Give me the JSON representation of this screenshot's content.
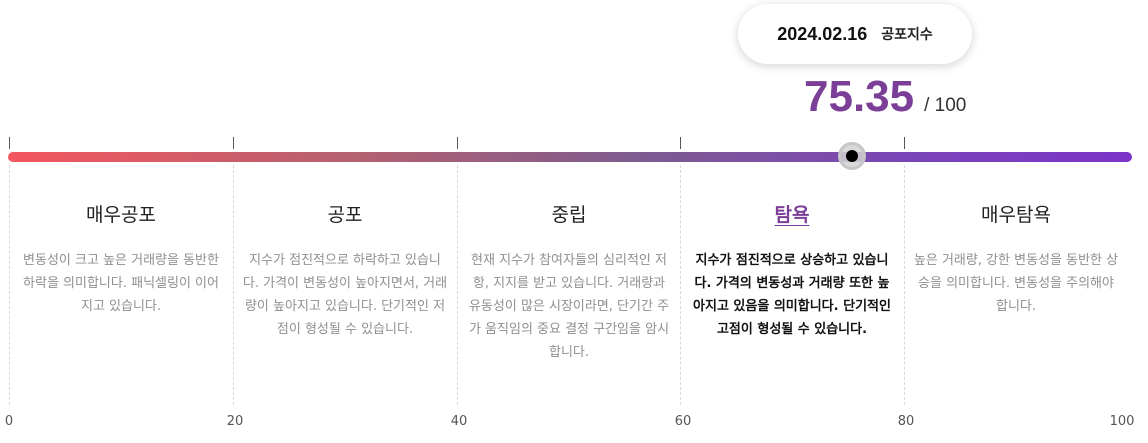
{
  "tooltip": {
    "date": "2024.02.16",
    "label": "공포지수"
  },
  "score": {
    "value": "75.35",
    "max": "/ 100",
    "fraction": 0.7535
  },
  "segments": [
    {
      "title": "매우공포",
      "desc": "변동성이 크고 높은 거래량을 동반한 하락을 의미합니다. 패닉셀링이 이어지고 있습니다."
    },
    {
      "title": "공포",
      "desc": "지수가 점진적으로 하락하고 있습니다. 가격이 변동성이 높아지면서, 거래량이 높아지고 있습니다. 단기적인 저점이 형성될 수 있습니다."
    },
    {
      "title": "중립",
      "desc": "현재 지수가 참여자들의 심리적인 저항, 지지를 받고 있습니다. 거래량과 유동성이 많은 시장이라면, 단기간 주가 움직임의 중요 결정 구간임을 암시합니다."
    },
    {
      "title": "탐욕",
      "desc": "지수가 점진적으로 상승하고 있습니다. 가격의 변동성과 거래량 또한 높아지고 있음을 의미합니다. 단기적인 고점이 형성될 수 있습니다."
    },
    {
      "title": "매우탐욕",
      "desc": "높은 거래량, 강한 변동성을 동반한 상승을 의미합니다. 변동성을 주의해야 합니다."
    }
  ],
  "axis": [
    "0",
    "20",
    "40",
    "60",
    "80",
    "100"
  ],
  "colors": {
    "accent": "#7c3f98",
    "bar_start": "#f4565f",
    "bar_end": "#7b33c8"
  }
}
